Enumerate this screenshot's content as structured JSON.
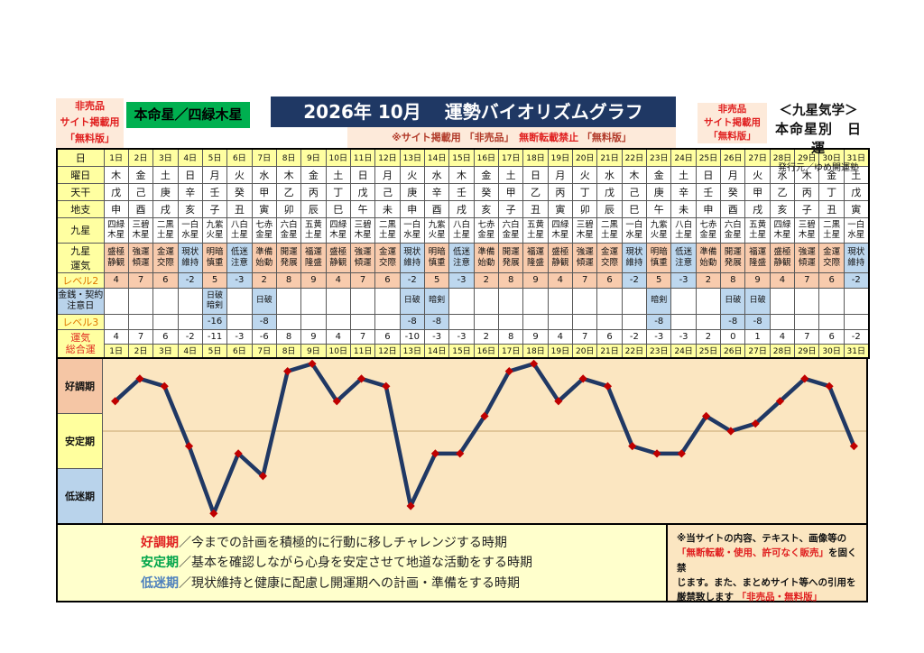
{
  "header": {
    "left_badge_lines": [
      "非売品",
      "サイト掲載用",
      "「無料版」"
    ],
    "honmeisei": "本命星／四緑木星",
    "title_year_month": "2026年 10月",
    "title_main": "運勢バイオリズムグラフ",
    "strip_segments": [
      {
        "text": "※サイト掲載用 「非売品」",
        "color": "#b23b2a"
      },
      {
        "text": "　無断転載禁止",
        "color": "#e02020"
      },
      {
        "text": " 「無料版」",
        "color": "#b23b2a"
      }
    ],
    "right_badge_lines": [
      "非売品",
      "サイト掲載用",
      "「無料版」"
    ],
    "right_info": {
      "line1": "＜九星気学＞",
      "line2": "本命星別　日運",
      "line3": "発行元／ゆめ開運塾"
    }
  },
  "table": {
    "row_labels": {
      "day": "日",
      "weekday": "曜日",
      "tenkan": "天干",
      "chishi": "地支",
      "kyusei": "九星",
      "kyusei_unki": "九星運気",
      "level2": "レベル2",
      "caution": "金銭・契約注意日",
      "level3": "レベル3",
      "total": "運気総合運"
    },
    "days": [
      "1日",
      "2日",
      "3日",
      "4日",
      "5日",
      "6日",
      "7日",
      "8日",
      "9日",
      "10日",
      "11日",
      "12日",
      "13日",
      "14日",
      "15日",
      "16日",
      "17日",
      "18日",
      "19日",
      "20日",
      "21日",
      "22日",
      "23日",
      "24日",
      "25日",
      "26日",
      "27日",
      "28日",
      "29日",
      "30日",
      "31日"
    ],
    "weekdays": [
      "木",
      "金",
      "土",
      "日",
      "月",
      "火",
      "水",
      "木",
      "金",
      "土",
      "日",
      "月",
      "火",
      "水",
      "木",
      "金",
      "土",
      "日",
      "月",
      "火",
      "水",
      "木",
      "金",
      "土",
      "日",
      "月",
      "火",
      "水",
      "木",
      "金",
      "土"
    ],
    "tenkan": [
      "戊",
      "己",
      "庚",
      "辛",
      "壬",
      "癸",
      "甲",
      "乙",
      "丙",
      "丁",
      "戊",
      "己",
      "庚",
      "辛",
      "壬",
      "癸",
      "甲",
      "乙",
      "丙",
      "丁",
      "戊",
      "己",
      "庚",
      "辛",
      "壬",
      "癸",
      "甲",
      "乙",
      "丙",
      "丁",
      "戊"
    ],
    "chishi": [
      "申",
      "酉",
      "戌",
      "亥",
      "子",
      "丑",
      "寅",
      "卯",
      "辰",
      "巳",
      "午",
      "未",
      "申",
      "酉",
      "戌",
      "亥",
      "子",
      "丑",
      "寅",
      "卯",
      "辰",
      "巳",
      "午",
      "未",
      "申",
      "酉",
      "戌",
      "亥",
      "子",
      "丑",
      "寅"
    ],
    "kyusei": [
      "四緑木星",
      "三碧木星",
      "二黒土星",
      "一白水星",
      "九紫火星",
      "八白土星",
      "七赤金星",
      "六白金星",
      "五黄土星",
      "四緑木星",
      "三碧木星",
      "二黒土星",
      "一白水星",
      "九紫火星",
      "八白土星",
      "七赤金星",
      "六白金星",
      "五黄土星",
      "四緑木星",
      "三碧木星",
      "二黒土星",
      "一白水星",
      "九紫火星",
      "八白土星",
      "七赤金星",
      "六白金星",
      "五黄土星",
      "四緑木星",
      "三碧木星",
      "二黒土星",
      "一白水星"
    ],
    "kyusei_unki": [
      "盛極静観",
      "強運傾運",
      "金運交際",
      "現状維持",
      "明暗慎重",
      "低迷注意",
      "準備始動",
      "開運発展",
      "福運隆盛",
      "盛極静観",
      "強運傾運",
      "金運交際",
      "現状維持",
      "明暗慎重",
      "低迷注意",
      "準備始動",
      "開運発展",
      "福運隆盛",
      "盛極静観",
      "強運傾運",
      "金運交際",
      "現状維持",
      "明暗慎重",
      "低迷注意",
      "準備始動",
      "開運発展",
      "福運隆盛",
      "盛極静観",
      "強運傾運",
      "金運交際",
      "現状維持"
    ],
    "level2": [
      4,
      7,
      6,
      -2,
      5,
      -3,
      2,
      8,
      9,
      4,
      7,
      6,
      -2,
      5,
      -3,
      2,
      8,
      9,
      4,
      7,
      6,
      -2,
      5,
      -3,
      2,
      8,
      9,
      4,
      7,
      6,
      -2
    ],
    "caution": [
      "",
      "",
      "",
      "",
      "日破暗剣",
      "",
      "日破",
      "",
      "",
      "",
      "",
      "",
      "日破",
      "暗剣",
      "",
      "",
      "",
      "",
      "",
      "",
      "",
      "",
      "暗剣",
      "",
      "",
      "日破",
      "日破",
      "",
      "",
      "",
      ""
    ],
    "level3": [
      "",
      "",
      "",
      "",
      "-16",
      "",
      "-8",
      "",
      "",
      "",
      "",
      "",
      "-8",
      "-8",
      "",
      "",
      "",
      "",
      "",
      "",
      "",
      "",
      "-8",
      "",
      "",
      "-8",
      "-8",
      "",
      "",
      "",
      ""
    ],
    "total": [
      4,
      7,
      6,
      -2,
      -11,
      -3,
      -6,
      8,
      9,
      4,
      7,
      6,
      -10,
      -3,
      -3,
      2,
      8,
      9,
      4,
      7,
      6,
      -2,
      -3,
      -3,
      2,
      0,
      1,
      4,
      7,
      6,
      -2
    ]
  },
  "chart_data": {
    "type": "line",
    "title": "運勢バイオリズムグラフ（2026年10月・四緑木星）",
    "categories": [
      "1日",
      "2日",
      "3日",
      "4日",
      "5日",
      "6日",
      "7日",
      "8日",
      "9日",
      "10日",
      "11日",
      "12日",
      "13日",
      "14日",
      "15日",
      "16日",
      "17日",
      "18日",
      "19日",
      "20日",
      "21日",
      "22日",
      "23日",
      "24日",
      "25日",
      "26日",
      "27日",
      "28日",
      "29日",
      "30日",
      "31日"
    ],
    "series": [
      {
        "name": "運気総合運",
        "values": [
          4,
          7,
          6,
          -2,
          -11,
          -3,
          -6,
          8,
          9,
          4,
          7,
          6,
          -10,
          -3,
          -3,
          2,
          8,
          9,
          4,
          7,
          6,
          -2,
          -3,
          -3,
          2,
          0,
          1,
          4,
          7,
          6,
          -2
        ]
      }
    ],
    "ylim": [
      -12,
      10
    ],
    "zero_line": true,
    "grid": "single horizontal zero line",
    "legend_position": "left band labels",
    "line_color": "#203864",
    "marker_color": "#c00000",
    "bands": [
      {
        "label": "好調期",
        "color": "#f5c6a5"
      },
      {
        "label": "安定期",
        "color": "#ffff9e"
      },
      {
        "label": "低迷期",
        "color": "#b9d3eb"
      }
    ]
  },
  "legend": [
    {
      "term": "好調期",
      "color": "#e02020",
      "desc": "／今までの計画を積極的に行動に移しチャレンジする時期"
    },
    {
      "term": "安定期",
      "color": "#00a44a",
      "desc": "／基本を確認しながら心身を安定させて地道な活動をする時期"
    },
    {
      "term": "低迷期",
      "color": "#4f81bd",
      "desc": "／現状維持と健康に配慮し開運期への計画・準備をする時期"
    }
  ],
  "disclaimer_lines": [
    [
      {
        "text": "※当サイトの内容、テキスト、画像等の",
        "red": false
      }
    ],
    [
      {
        "text": "「無断転載・使用、許可なく販売」",
        "red": true
      },
      {
        "text": "を固く禁",
        "red": false
      }
    ],
    [
      {
        "text": "じます。また、まとめサイト等への引用を",
        "red": false
      }
    ],
    [
      {
        "text": "厳禁致します ",
        "red": false
      },
      {
        "text": "「非売品・無料版」",
        "red": true
      }
    ]
  ],
  "colors": {
    "title_bar": "#1f3864",
    "honmeisei_green": "#00b050",
    "badge_cream": "#fdeada",
    "label_yellow": "#ffffa1",
    "cell_salmon": "#f8cbad",
    "cell_blue": "#bdd7ee",
    "plot_cream": "#fbe6c1",
    "legend_yellow": "#ffffcc",
    "red_text": "#e02020"
  }
}
